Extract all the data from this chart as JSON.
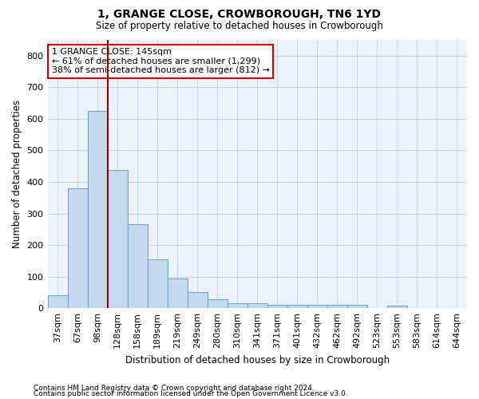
{
  "title1": "1, GRANGE CLOSE, CROWBOROUGH, TN6 1YD",
  "title2": "Size of property relative to detached houses in Crowborough",
  "xlabel": "Distribution of detached houses by size in Crowborough",
  "ylabel": "Number of detached properties",
  "categories": [
    "37sqm",
    "67sqm",
    "98sqm",
    "128sqm",
    "158sqm",
    "189sqm",
    "219sqm",
    "249sqm",
    "280sqm",
    "310sqm",
    "341sqm",
    "371sqm",
    "401sqm",
    "432sqm",
    "462sqm",
    "492sqm",
    "523sqm",
    "553sqm",
    "583sqm",
    "614sqm",
    "644sqm"
  ],
  "values": [
    42,
    380,
    625,
    438,
    265,
    155,
    95,
    50,
    28,
    15,
    15,
    10,
    10,
    10,
    10,
    10,
    0,
    8,
    0,
    0,
    0
  ],
  "bar_color": "#c5d8ee",
  "bar_edge_color": "#6aaad4",
  "grid_color": "#c8d4e8",
  "background_color": "#edf2fa",
  "red_line_x": 2.5,
  "annotation_text": "1 GRANGE CLOSE: 145sqm\n← 61% of detached houses are smaller (1,299)\n38% of semi-detached houses are larger (812) →",
  "annotation_box_facecolor": "#ffffff",
  "annotation_box_edgecolor": "#cc0000",
  "footnote1": "Contains HM Land Registry data © Crown copyright and database right 2024.",
  "footnote2": "Contains public sector information licensed under the Open Government Licence v3.0.",
  "ylim": [
    0,
    850
  ],
  "yticks": [
    0,
    100,
    200,
    300,
    400,
    500,
    600,
    700,
    800
  ]
}
